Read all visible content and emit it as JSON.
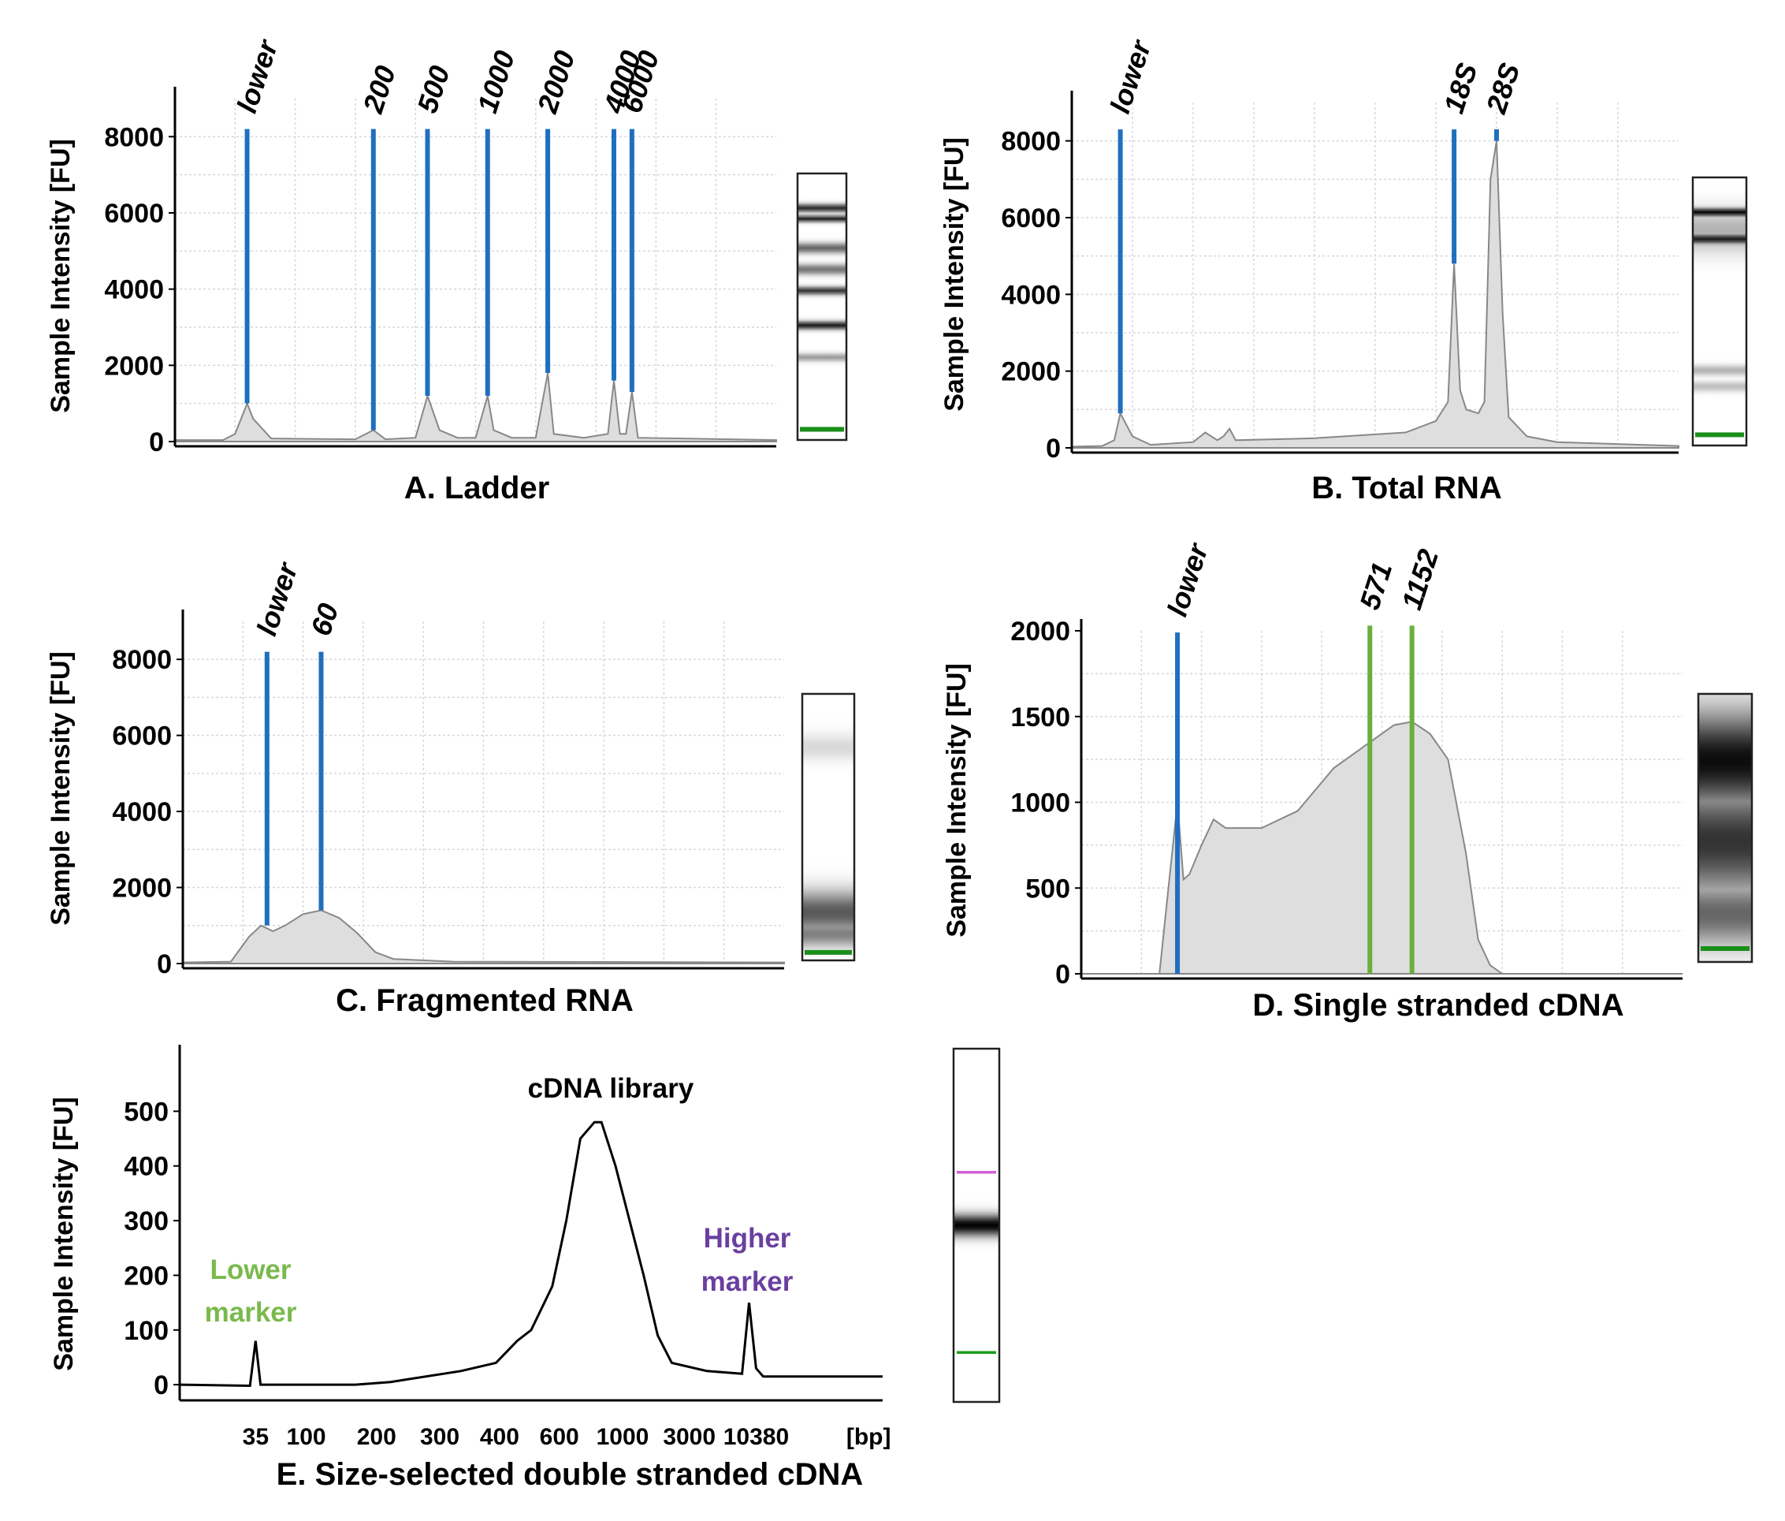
{
  "ylabel": "Sample Intensity [FU]",
  "chart_data": [
    {
      "id": "A",
      "type": "line",
      "title": "A. Ladder",
      "ylabel": "Sample Intensity [FU]",
      "ylim": [
        0,
        9000
      ],
      "yticks": [
        0,
        2000,
        4000,
        6000,
        8000
      ],
      "grid": true,
      "x_domain": [
        0,
        100
      ],
      "trace": [
        [
          0,
          40
        ],
        [
          8,
          40
        ],
        [
          10,
          200
        ],
        [
          12,
          1000
        ],
        [
          13,
          600
        ],
        [
          16,
          80
        ],
        [
          30,
          60
        ],
        [
          33,
          300
        ],
        [
          35,
          60
        ],
        [
          40,
          100
        ],
        [
          42,
          1200
        ],
        [
          44,
          300
        ],
        [
          47,
          100
        ],
        [
          50,
          100
        ],
        [
          52,
          1200
        ],
        [
          53,
          300
        ],
        [
          56,
          100
        ],
        [
          60,
          100
        ],
        [
          62,
          1800
        ],
        [
          63,
          200
        ],
        [
          68,
          100
        ],
        [
          72,
          200
        ],
        [
          73,
          1600
        ],
        [
          74,
          200
        ],
        [
          75,
          200
        ],
        [
          76,
          1300
        ],
        [
          77,
          100
        ],
        [
          100,
          40
        ]
      ],
      "markers": [
        {
          "label": "lower",
          "x": 12,
          "bottom": 1000,
          "top": 8200,
          "color": "#1f6fbf"
        },
        {
          "label": "200",
          "x": 33,
          "bottom": 300,
          "top": 8200,
          "color": "#1f6fbf"
        },
        {
          "label": "500",
          "x": 42,
          "bottom": 1200,
          "top": 8200,
          "color": "#1f6fbf"
        },
        {
          "label": "1000",
          "x": 52,
          "bottom": 1200,
          "top": 8200,
          "color": "#1f6fbf"
        },
        {
          "label": "2000",
          "x": 62,
          "bottom": 1800,
          "top": 8200,
          "color": "#1f6fbf"
        },
        {
          "label": "4000",
          "x": 73,
          "bottom": 1600,
          "top": 8200,
          "color": "#1f6fbf"
        },
        {
          "label": "6000",
          "x": 76,
          "bottom": 1300,
          "top": 8200,
          "color": "#1f6fbf"
        }
      ],
      "gel_bands": [
        {
          "pos": 0.13,
          "v": 0.85,
          "w": 0.015
        },
        {
          "pos": 0.17,
          "v": 0.9,
          "w": 0.012
        },
        {
          "pos": 0.28,
          "v": 0.6,
          "w": 0.02
        },
        {
          "pos": 0.36,
          "v": 0.55,
          "w": 0.02
        },
        {
          "pos": 0.44,
          "v": 0.8,
          "w": 0.015
        },
        {
          "pos": 0.57,
          "v": 0.9,
          "w": 0.015
        },
        {
          "pos": 0.69,
          "v": 0.4,
          "w": 0.015
        }
      ],
      "gel_marker": {
        "pos": 0.96,
        "color": "#1a8f1a"
      }
    },
    {
      "id": "B",
      "type": "line",
      "title": "B. Total RNA",
      "ylabel": "Sample Intensity [FU]",
      "ylim": [
        0,
        9000
      ],
      "yticks": [
        0,
        2000,
        4000,
        6000,
        8000
      ],
      "grid": true,
      "x_domain": [
        0,
        100
      ],
      "trace": [
        [
          0,
          30
        ],
        [
          5,
          50
        ],
        [
          7,
          200
        ],
        [
          8,
          900
        ],
        [
          10,
          300
        ],
        [
          13,
          80
        ],
        [
          20,
          150
        ],
        [
          22,
          400
        ],
        [
          24,
          200
        ],
        [
          25,
          300
        ],
        [
          26,
          500
        ],
        [
          27,
          200
        ],
        [
          40,
          250
        ],
        [
          55,
          400
        ],
        [
          60,
          700
        ],
        [
          62,
          1200
        ],
        [
          63,
          4800
        ],
        [
          64,
          1500
        ],
        [
          65,
          1000
        ],
        [
          67,
          900
        ],
        [
          68,
          1200
        ],
        [
          69,
          7000
        ],
        [
          70,
          8000
        ],
        [
          71,
          3500
        ],
        [
          72,
          800
        ],
        [
          75,
          300
        ],
        [
          80,
          150
        ],
        [
          100,
          50
        ]
      ],
      "markers": [
        {
          "label": "lower",
          "x": 8,
          "bottom": 900,
          "top": 8300,
          "color": "#1f6fbf"
        },
        {
          "label": "18S",
          "x": 63,
          "bottom": 4800,
          "top": 8300,
          "color": "#1f6fbf"
        },
        {
          "label": "28S",
          "x": 70,
          "bottom": 8000,
          "top": 8300,
          "color": "#1f6fbf"
        }
      ],
      "gel_bands": [
        {
          "pos": 0.13,
          "v": 1.0,
          "w": 0.015
        },
        {
          "pos": 0.23,
          "v": 0.9,
          "w": 0.018
        },
        {
          "pos": 0.2,
          "v": 0.3,
          "w": 0.08
        },
        {
          "pos": 0.72,
          "v": 0.3,
          "w": 0.02
        },
        {
          "pos": 0.78,
          "v": 0.25,
          "w": 0.02
        }
      ],
      "gel_marker": {
        "pos": 0.96,
        "color": "#1a8f1a"
      }
    },
    {
      "id": "C",
      "type": "line",
      "title": "C. Fragmented RNA",
      "ylabel": "Sample Intensity [FU]",
      "ylim": [
        0,
        9000
      ],
      "yticks": [
        0,
        2000,
        4000,
        6000,
        8000
      ],
      "grid": true,
      "x_domain": [
        0,
        100
      ],
      "trace": [
        [
          0,
          30
        ],
        [
          8,
          50
        ],
        [
          11,
          700
        ],
        [
          13,
          1000
        ],
        [
          15,
          850
        ],
        [
          17,
          1000
        ],
        [
          20,
          1300
        ],
        [
          23,
          1400
        ],
        [
          26,
          1200
        ],
        [
          29,
          800
        ],
        [
          32,
          300
        ],
        [
          35,
          120
        ],
        [
          45,
          50
        ],
        [
          100,
          30
        ]
      ],
      "markers": [
        {
          "label": "lower",
          "x": 14,
          "bottom": 1000,
          "top": 8200,
          "color": "#1f6fbf"
        },
        {
          "label": "60",
          "x": 23,
          "bottom": 1400,
          "top": 8200,
          "color": "#1f6fbf"
        }
      ],
      "gel_bands": [
        {
          "pos": 0.2,
          "v": 0.15,
          "w": 0.05
        },
        {
          "pos": 0.82,
          "v": 0.65,
          "w": 0.08
        },
        {
          "pos": 0.9,
          "v": 0.5,
          "w": 0.05
        }
      ],
      "gel_marker": {
        "pos": 0.97,
        "color": "#1a8f1a"
      }
    },
    {
      "id": "D",
      "type": "line",
      "title": "D. Single stranded cDNA",
      "ylabel": "Sample Intensity [FU]",
      "ylim": [
        0,
        2000
      ],
      "yticks": [
        0,
        500,
        1000,
        1500,
        2000
      ],
      "grid": true,
      "x_domain": [
        0,
        100
      ],
      "trace": [
        [
          0,
          0
        ],
        [
          13,
          0
        ],
        [
          14.5,
          500
        ],
        [
          16,
          1000
        ],
        [
          17,
          550
        ],
        [
          18,
          580
        ],
        [
          20,
          750
        ],
        [
          22,
          900
        ],
        [
          24,
          850
        ],
        [
          30,
          850
        ],
        [
          36,
          950
        ],
        [
          42,
          1200
        ],
        [
          48,
          1350
        ],
        [
          52,
          1450
        ],
        [
          55,
          1470
        ],
        [
          58,
          1400
        ],
        [
          61,
          1250
        ],
        [
          64,
          700
        ],
        [
          66,
          200
        ],
        [
          68,
          50
        ],
        [
          70,
          0
        ],
        [
          100,
          0
        ]
      ],
      "markers": [
        {
          "label": "lower",
          "x": 16,
          "bottom": 0,
          "top": 1990,
          "color": "#1f6fbf"
        },
        {
          "label": "571",
          "x": 48,
          "bottom": 0,
          "top": 2030,
          "color": "#6aaf3c"
        },
        {
          "label": "1152",
          "x": 55,
          "bottom": 0,
          "top": 2030,
          "color": "#6aaf3c"
        }
      ],
      "gel_bands": [
        {
          "pos": 0.25,
          "v": 0.95,
          "w": 0.18
        },
        {
          "pos": 0.55,
          "v": 0.8,
          "w": 0.2
        },
        {
          "pos": 0.82,
          "v": 0.6,
          "w": 0.12
        }
      ],
      "gel_marker": {
        "pos": 0.95,
        "color": "#1a8f1a"
      }
    },
    {
      "id": "E",
      "type": "line",
      "title": "E. Size-selected double stranded cDNA",
      "ylabel": "Sample Intensity [FU]",
      "ylim": [
        -20,
        600
      ],
      "yticks": [
        0,
        100,
        200,
        300,
        400,
        500
      ],
      "grid": false,
      "x_domain": [
        0,
        100
      ],
      "xtick_labels": [
        {
          "label": "35",
          "x": 10.8
        },
        {
          "label": "100",
          "x": 18
        },
        {
          "label": "200",
          "x": 28
        },
        {
          "label": "300",
          "x": 37
        },
        {
          "label": "400",
          "x": 45.5
        },
        {
          "label": "600",
          "x": 54
        },
        {
          "label": "1000",
          "x": 63
        },
        {
          "label": "3000",
          "x": 72.5
        },
        {
          "label": "10380",
          "x": 82
        },
        {
          "label": "[bp]",
          "x": 98
        }
      ],
      "trace": [
        [
          0,
          0
        ],
        [
          10,
          -2
        ],
        [
          10.8,
          80
        ],
        [
          11.5,
          0
        ],
        [
          25,
          0
        ],
        [
          30,
          5
        ],
        [
          40,
          25
        ],
        [
          45,
          40
        ],
        [
          48,
          80
        ],
        [
          50,
          100
        ],
        [
          53,
          180
        ],
        [
          55,
          300
        ],
        [
          57,
          450
        ],
        [
          59,
          480
        ],
        [
          60,
          480
        ],
        [
          62,
          400
        ],
        [
          64,
          300
        ],
        [
          66,
          200
        ],
        [
          68,
          90
        ],
        [
          70,
          40
        ],
        [
          75,
          25
        ],
        [
          80,
          20
        ],
        [
          81,
          150
        ],
        [
          82,
          30
        ],
        [
          83,
          15
        ],
        [
          100,
          15
        ]
      ],
      "annotations": [
        {
          "text": "cDNA library",
          "color": "#000000"
        },
        {
          "text": "Lower",
          "color": "#7ab94c"
        },
        {
          "text": "marker",
          "color": "#7ab94c"
        },
        {
          "text": "Higher",
          "color": "#6b3fa0"
        },
        {
          "text": "marker",
          "color": "#6b3fa0"
        }
      ],
      "gel_bands": [
        {
          "pos": 0.5,
          "v": 1.0,
          "w": 0.03
        }
      ],
      "gel_lines": [
        {
          "pos": 0.35,
          "color": "#d35ed3"
        },
        {
          "pos": 0.86,
          "color": "#1a9f1a"
        }
      ]
    }
  ]
}
